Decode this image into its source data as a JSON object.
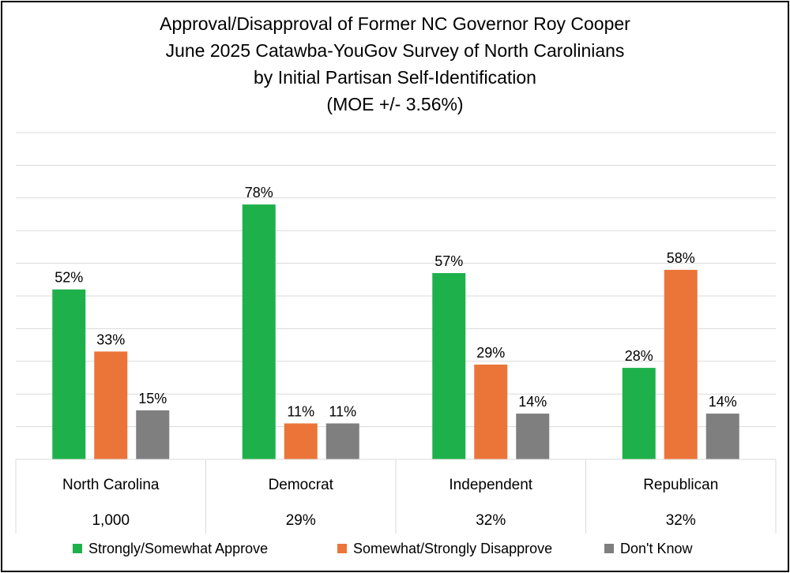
{
  "chart_data": {
    "type": "bar",
    "title_lines": [
      "Approval/Disapproval of Former NC Governor Roy Cooper",
      "June 2025 Catawba-YouGov Survey of North Carolinians",
      "by Initial Partisan Self-Identification",
      "(MOE +/- 3.56%)"
    ],
    "categories": [
      "North Carolina",
      "Democrat",
      "Independent",
      "Republican"
    ],
    "category_subtitles": [
      "1,000",
      "29%",
      "32%",
      "32%"
    ],
    "series": [
      {
        "name": "Strongly/Somewhat Approve",
        "color": "#1EB14B",
        "values": [
          52,
          78,
          57,
          28
        ],
        "labels": [
          "52%",
          "78%",
          "57%",
          "28%"
        ]
      },
      {
        "name": "Somewhat/Strongly Disapprove",
        "color": "#EB7538",
        "values": [
          33,
          11,
          29,
          58
        ],
        "labels": [
          "33%",
          "11%",
          "29%",
          "58%"
        ]
      },
      {
        "name": "Don't Know",
        "color": "#7F7F7F",
        "values": [
          15,
          11,
          14,
          14
        ],
        "labels": [
          "15%",
          "11%",
          "14%",
          "14%"
        ]
      }
    ],
    "ylim": [
      0,
      100
    ],
    "grid": true,
    "legend_position": "bottom"
  }
}
